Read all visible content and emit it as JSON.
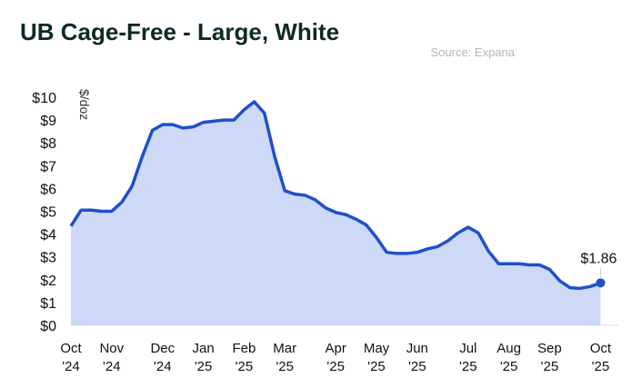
{
  "chart_data": {
    "type": "area",
    "title": "UB Cage-Free  - Large, White",
    "source": "Source: Expana",
    "y_label": "$/doz",
    "categories": [
      "Oct '24",
      null,
      null,
      null,
      "Nov '24",
      null,
      null,
      null,
      null,
      "Dec '24",
      null,
      null,
      null,
      "Jan '25",
      null,
      null,
      null,
      "Feb '25",
      null,
      null,
      null,
      "Mar '25",
      null,
      null,
      null,
      null,
      "Apr '25",
      null,
      null,
      null,
      "May '25",
      null,
      null,
      null,
      "Jun '25",
      null,
      null,
      null,
      null,
      "Jul '25",
      null,
      null,
      null,
      "Aug '25",
      null,
      null,
      null,
      "Sep '25",
      null,
      null,
      null,
      null,
      "Oct '25"
    ],
    "series": [
      {
        "name": "UB Cage-Free - Large, White",
        "color": "#1f4fcc",
        "fill": "#cdd9f7",
        "values": [
          4.35,
          5.05,
          5.05,
          5.0,
          5.0,
          5.4,
          6.1,
          7.4,
          8.55,
          8.8,
          8.8,
          8.65,
          8.7,
          8.9,
          8.95,
          9.0,
          9.0,
          9.45,
          9.8,
          9.3,
          7.4,
          5.9,
          5.75,
          5.7,
          5.5,
          5.15,
          4.95,
          4.85,
          4.65,
          4.4,
          3.85,
          3.2,
          3.15,
          3.15,
          3.2,
          3.35,
          3.45,
          3.7,
          4.05,
          4.3,
          4.05,
          3.25,
          2.7,
          2.7,
          2.7,
          2.65,
          2.65,
          2.45,
          1.95,
          1.65,
          1.62,
          1.7,
          1.86
        ],
        "value_labels": [
          null,
          null,
          null,
          null,
          null,
          null,
          null,
          null,
          null,
          null,
          null,
          null,
          null,
          null,
          null,
          null,
          null,
          null,
          null,
          null,
          null,
          null,
          null,
          null,
          null,
          null,
          null,
          null,
          null,
          null,
          null,
          null,
          null,
          null,
          null,
          null,
          null,
          null,
          null,
          null,
          null,
          null,
          null,
          null,
          null,
          null,
          null,
          null,
          null,
          null,
          null,
          null,
          "$1.86"
        ]
      }
    ],
    "ylim": [
      0,
      10
    ],
    "yticks": [
      {
        "value": 0,
        "label": "$0"
      },
      {
        "value": 1,
        "label": "$1"
      },
      {
        "value": 2,
        "label": "$2"
      },
      {
        "value": 3,
        "label": "$3"
      },
      {
        "value": 4,
        "label": "$4"
      },
      {
        "value": 5,
        "label": "$5"
      },
      {
        "value": 6,
        "label": "$6"
      },
      {
        "value": 7,
        "label": "$7"
      },
      {
        "value": 8,
        "label": "$8"
      },
      {
        "value": 9,
        "label": "$9"
      },
      {
        "value": 10,
        "label": "$10"
      }
    ],
    "grid": false
  }
}
